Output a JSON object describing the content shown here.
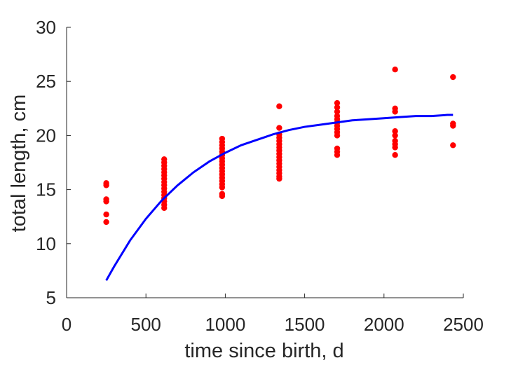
{
  "chart_data": {
    "type": "scatter",
    "xlabel": "time since birth, d",
    "ylabel": "total length, cm",
    "xlim": [
      0,
      2500
    ],
    "ylim": [
      5,
      30
    ],
    "xticks": [
      0,
      500,
      1000,
      1500,
      2000,
      2500
    ],
    "yticks": [
      5,
      10,
      15,
      20,
      25,
      30
    ],
    "grid": false,
    "colors": {
      "points": "#ff0000",
      "curve": "#0000ff",
      "axes": "#262626"
    },
    "series": [
      {
        "type": "scatter",
        "points": [
          [
            250,
            15.6
          ],
          [
            250,
            15.4
          ],
          [
            250,
            14.1
          ],
          [
            250,
            13.9
          ],
          [
            250,
            12.7
          ],
          [
            250,
            12.0
          ],
          [
            615,
            17.8
          ],
          [
            615,
            17.5
          ],
          [
            615,
            17.2
          ],
          [
            615,
            16.9
          ],
          [
            615,
            16.6
          ],
          [
            615,
            16.3
          ],
          [
            615,
            16.0
          ],
          [
            615,
            15.7
          ],
          [
            615,
            15.4
          ],
          [
            615,
            15.1
          ],
          [
            615,
            14.8
          ],
          [
            615,
            14.5
          ],
          [
            615,
            14.2
          ],
          [
            615,
            13.9
          ],
          [
            615,
            13.6
          ],
          [
            615,
            13.3
          ],
          [
            980,
            19.7
          ],
          [
            980,
            19.4
          ],
          [
            980,
            19.1
          ],
          [
            980,
            18.8
          ],
          [
            980,
            18.5
          ],
          [
            980,
            18.2
          ],
          [
            980,
            17.9
          ],
          [
            980,
            17.6
          ],
          [
            980,
            17.3
          ],
          [
            980,
            17.0
          ],
          [
            980,
            16.7
          ],
          [
            980,
            16.4
          ],
          [
            980,
            16.1
          ],
          [
            980,
            15.8
          ],
          [
            980,
            15.5
          ],
          [
            980,
            15.2
          ],
          [
            980,
            14.6
          ],
          [
            980,
            14.4
          ],
          [
            1340,
            22.7
          ],
          [
            1340,
            20.7
          ],
          [
            1340,
            20.1
          ],
          [
            1340,
            19.8
          ],
          [
            1340,
            19.5
          ],
          [
            1340,
            19.2
          ],
          [
            1340,
            18.9
          ],
          [
            1340,
            18.6
          ],
          [
            1340,
            18.3
          ],
          [
            1340,
            18.0
          ],
          [
            1340,
            17.7
          ],
          [
            1340,
            17.4
          ],
          [
            1340,
            17.1
          ],
          [
            1340,
            16.8
          ],
          [
            1340,
            16.5
          ],
          [
            1340,
            16.2
          ],
          [
            1340,
            16.0
          ],
          [
            1705,
            23.0
          ],
          [
            1705,
            22.6
          ],
          [
            1705,
            22.2
          ],
          [
            1705,
            21.8
          ],
          [
            1705,
            21.5
          ],
          [
            1705,
            21.2
          ],
          [
            1705,
            20.9
          ],
          [
            1705,
            20.6
          ],
          [
            1705,
            20.3
          ],
          [
            1705,
            20.0
          ],
          [
            1705,
            18.8
          ],
          [
            1705,
            18.5
          ],
          [
            1705,
            18.2
          ],
          [
            2070,
            26.1
          ],
          [
            2070,
            22.5
          ],
          [
            2070,
            22.2
          ],
          [
            2070,
            20.4
          ],
          [
            2070,
            20.0
          ],
          [
            2070,
            19.5
          ],
          [
            2070,
            19.2
          ],
          [
            2070,
            18.9
          ],
          [
            2070,
            18.2
          ],
          [
            2435,
            25.4
          ],
          [
            2435,
            21.1
          ],
          [
            2435,
            20.9
          ],
          [
            2435,
            19.1
          ]
        ]
      },
      {
        "type": "line",
        "x": [
          250,
          300,
          400,
          500,
          600,
          700,
          800,
          900,
          1000,
          1100,
          1200,
          1300,
          1400,
          1500,
          1600,
          1700,
          1800,
          1900,
          2000,
          2100,
          2200,
          2300,
          2400,
          2435
        ],
        "y": [
          6.6,
          7.9,
          10.3,
          12.3,
          14.0,
          15.4,
          16.6,
          17.6,
          18.4,
          19.1,
          19.6,
          20.1,
          20.5,
          20.8,
          21.0,
          21.2,
          21.4,
          21.5,
          21.6,
          21.7,
          21.8,
          21.8,
          21.9,
          21.9
        ]
      }
    ]
  }
}
